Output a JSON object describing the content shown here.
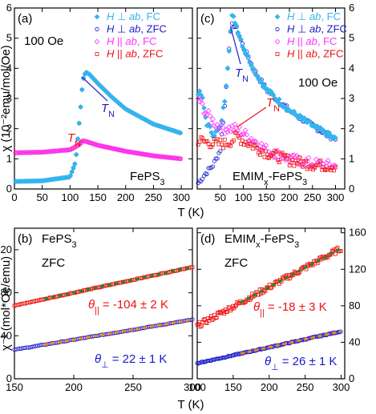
{
  "colors": {
    "perp_fc": "#33b5ee",
    "perp_zfc": "#1a1acc",
    "par_fc": "#ff33ff",
    "par_zfc": "#ee1111",
    "fit_green": "#228822",
    "fit_orange": "#ff8800"
  },
  "chart_data": [
    {
      "panel": "a",
      "type": "scatter",
      "panel_label": "(a)",
      "field_label": "100 Oe",
      "sample_label": "FePS3",
      "annotations": [
        {
          "text": "T_N",
          "color": "#1a1acc",
          "at": [
            127,
            3.2
          ]
        },
        {
          "text": "T_N",
          "color": "#ee1111",
          "at": [
            112,
            1.85
          ]
        }
      ],
      "xlim": [
        0,
        320
      ],
      "ylim": [
        0,
        6
      ],
      "xticks": [
        0,
        50,
        100,
        150,
        200,
        250,
        300
      ],
      "yticks": [
        0,
        1,
        2,
        3,
        4,
        5,
        6
      ],
      "legend_position": "top-right",
      "series": [
        {
          "name": "H ⊥ ab, FC",
          "x": [
            2,
            50,
            100,
            110,
            118,
            123,
            128,
            135,
            150,
            175,
            200,
            250,
            300
          ],
          "y": [
            0.25,
            0.27,
            0.4,
            0.9,
            2.5,
            3.6,
            3.88,
            3.8,
            3.5,
            3.05,
            2.65,
            2.15,
            1.85
          ]
        },
        {
          "name": "H ⊥ ab, ZFC",
          "x": [
            2,
            50,
            100,
            110,
            118,
            123,
            128,
            135,
            150,
            175,
            200,
            250,
            300
          ],
          "y": [
            0.25,
            0.27,
            0.4,
            0.9,
            2.5,
            3.6,
            3.88,
            3.8,
            3.5,
            3.05,
            2.65,
            2.15,
            1.85
          ]
        },
        {
          "name": "H || ab, FC",
          "x": [
            2,
            50,
            100,
            110,
            118,
            123,
            128,
            150,
            200,
            250,
            300
          ],
          "y": [
            1.2,
            1.22,
            1.3,
            1.4,
            1.5,
            1.6,
            1.58,
            1.45,
            1.25,
            1.1,
            1.0
          ]
        },
        {
          "name": "H || ab, ZFC",
          "x": [
            2,
            50,
            100,
            110,
            118,
            123,
            128,
            150,
            200,
            250,
            300
          ],
          "y": [
            1.2,
            1.22,
            1.3,
            1.4,
            1.5,
            1.6,
            1.58,
            1.45,
            1.25,
            1.1,
            1.0
          ]
        }
      ]
    },
    {
      "panel": "c",
      "type": "scatter",
      "panel_label": "(c)",
      "field_label": "100 Oe",
      "sample_label": "EMIMx-FePS3",
      "annotations": [
        {
          "text": "T_N",
          "color": "#1a1acc",
          "at": [
            82,
            3.4
          ]
        },
        {
          "text": "T_N",
          "color": "#ee1111",
          "at": [
            115,
            2.4
          ]
        }
      ],
      "xlim": [
        0,
        320
      ],
      "ylim": [
        0,
        6
      ],
      "xticks": [
        0,
        50,
        100,
        150,
        200,
        250,
        300
      ],
      "yticks": [
        0,
        1,
        2,
        3,
        4,
        5,
        6
      ],
      "legend_position": "top-right",
      "series": [
        {
          "name": "H ⊥ ab, FC",
          "x": [
            2,
            10,
            20,
            35,
            50,
            60,
            70,
            75,
            80,
            90,
            100,
            125,
            150,
            200,
            250,
            300
          ],
          "y": [
            3.2,
            3.1,
            2.2,
            1.8,
            2.0,
            3.0,
            4.8,
            5.7,
            5.65,
            5.2,
            4.7,
            3.9,
            3.3,
            2.6,
            2.1,
            1.65
          ]
        },
        {
          "name": "H ⊥ ab, ZFC",
          "x": [
            2,
            10,
            20,
            35,
            50,
            60,
            70,
            75,
            80,
            90,
            100,
            125,
            150,
            200,
            250,
            300
          ],
          "y": [
            0.2,
            0.35,
            0.55,
            0.8,
            1.3,
            2.8,
            4.9,
            5.4,
            5.45,
            5.15,
            4.7,
            3.9,
            3.3,
            2.6,
            2.1,
            1.65
          ]
        },
        {
          "name": "H || ab, FC",
          "x": [
            2,
            10,
            20,
            40,
            60,
            75,
            85,
            100,
            125,
            150,
            200,
            250,
            300
          ],
          "y": [
            3.0,
            2.8,
            2.5,
            2.15,
            2.0,
            2.0,
            2.0,
            1.85,
            1.6,
            1.3,
            1.0,
            0.85,
            0.75
          ]
        },
        {
          "name": "H || ab, ZFC",
          "x": [
            2,
            10,
            20,
            40,
            60,
            75,
            85,
            100,
            125,
            150,
            200,
            250,
            300
          ],
          "y": [
            1.6,
            1.6,
            1.55,
            1.5,
            1.5,
            1.6,
            1.75,
            1.6,
            1.4,
            1.2,
            0.95,
            0.8,
            0.75
          ]
        }
      ]
    },
    {
      "panel": "b",
      "type": "scatter",
      "panel_label": "(b)",
      "sample_label": "FePS3",
      "mode_label": "ZFC",
      "annotations": [
        {
          "text": "θ|| = -104 ± 2 K",
          "color": "#ee1111"
        },
        {
          "text": "θ⊥ = 22 ± 1 K",
          "color": "#1a1acc"
        }
      ],
      "xlim": [
        150,
        300
      ],
      "ylim": [
        0,
        140
      ],
      "xticks": [
        150,
        200,
        250,
        300
      ],
      "yticks": [
        0,
        40,
        80,
        120
      ],
      "series": [
        {
          "name": "H || ab, ZFC",
          "x": [
            150,
            300
          ],
          "y": [
            68,
            104
          ]
        },
        {
          "name": "H ⊥ ab, ZFC",
          "x": [
            150,
            300
          ],
          "y": [
            27,
            55
          ]
        }
      ]
    },
    {
      "panel": "d",
      "type": "scatter",
      "panel_label": "(d)",
      "sample_label": "EMIMx-FePS3",
      "mode_label": "ZFC",
      "annotations": [
        {
          "text": "θ|| = -18 ± 3 K",
          "color": "#ee1111"
        },
        {
          "text": "θ⊥ = 26 ± 1 K",
          "color": "#1a1acc"
        }
      ],
      "xlim": [
        100,
        305
      ],
      "ylim": [
        0,
        165
      ],
      "xticks": [
        100,
        150,
        200,
        250,
        300
      ],
      "yticks": [
        0,
        40,
        80,
        120,
        160
      ],
      "series": [
        {
          "name": "H || ab, ZFC",
          "x": [
            100,
            300
          ],
          "y": [
            58,
            143
          ]
        },
        {
          "name": "H ⊥ ab, ZFC",
          "x": [
            100,
            300
          ],
          "y": [
            17,
            52
          ]
        }
      ]
    }
  ],
  "axes": {
    "top_ylabel": "χ (10⁻²emu/mol/Oe)",
    "top_xlabel": "T (K)",
    "bottom_ylabel": "χ⁻¹ (mol*Oe/emu)",
    "bottom_xlabel": "T (K)"
  }
}
